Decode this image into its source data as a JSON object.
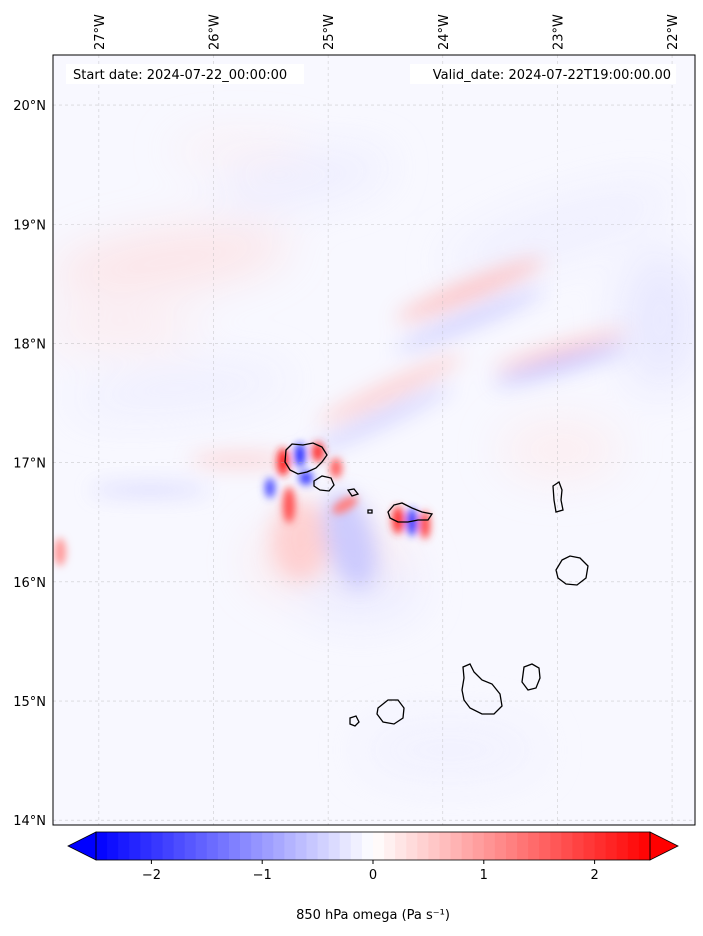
{
  "map": {
    "start_date": "Start date: 2024-07-22_00:00:00",
    "valid_date": "Valid_date: 2024-07-22T19:00:00.00",
    "lon_labels": [
      "27°W",
      "26°W",
      "25°W",
      "24°W",
      "23°W",
      "22°W"
    ],
    "lat_labels": [
      "20°N",
      "19°N",
      "18°N",
      "17°N",
      "16°N",
      "15°N",
      "14°N"
    ],
    "lon_values": [
      -27,
      -26,
      -25,
      -24,
      -23,
      -22
    ],
    "lat_values": [
      20,
      19,
      18,
      17,
      16,
      15,
      14
    ],
    "extent": {
      "lon_min": -27.4,
      "lon_max": -21.8,
      "lat_min": 13.96,
      "lat_max": 20.42
    },
    "grid": true
  },
  "colorbar": {
    "label": "850 hPa omega (Pa s⁻¹)",
    "ticks": [
      "−2",
      "−1",
      "0",
      "1",
      "2"
    ],
    "tick_values": [
      -2,
      -1,
      0,
      1,
      2
    ],
    "vmin": -2.5,
    "vmax": 2.5,
    "cmap": "bwr",
    "extend": "both"
  },
  "colors": {
    "negative": "#0000ff",
    "positive": "#ff0000",
    "zero": "#ffffff",
    "coastline": "#000000",
    "grid": "#b0b0b0"
  }
}
